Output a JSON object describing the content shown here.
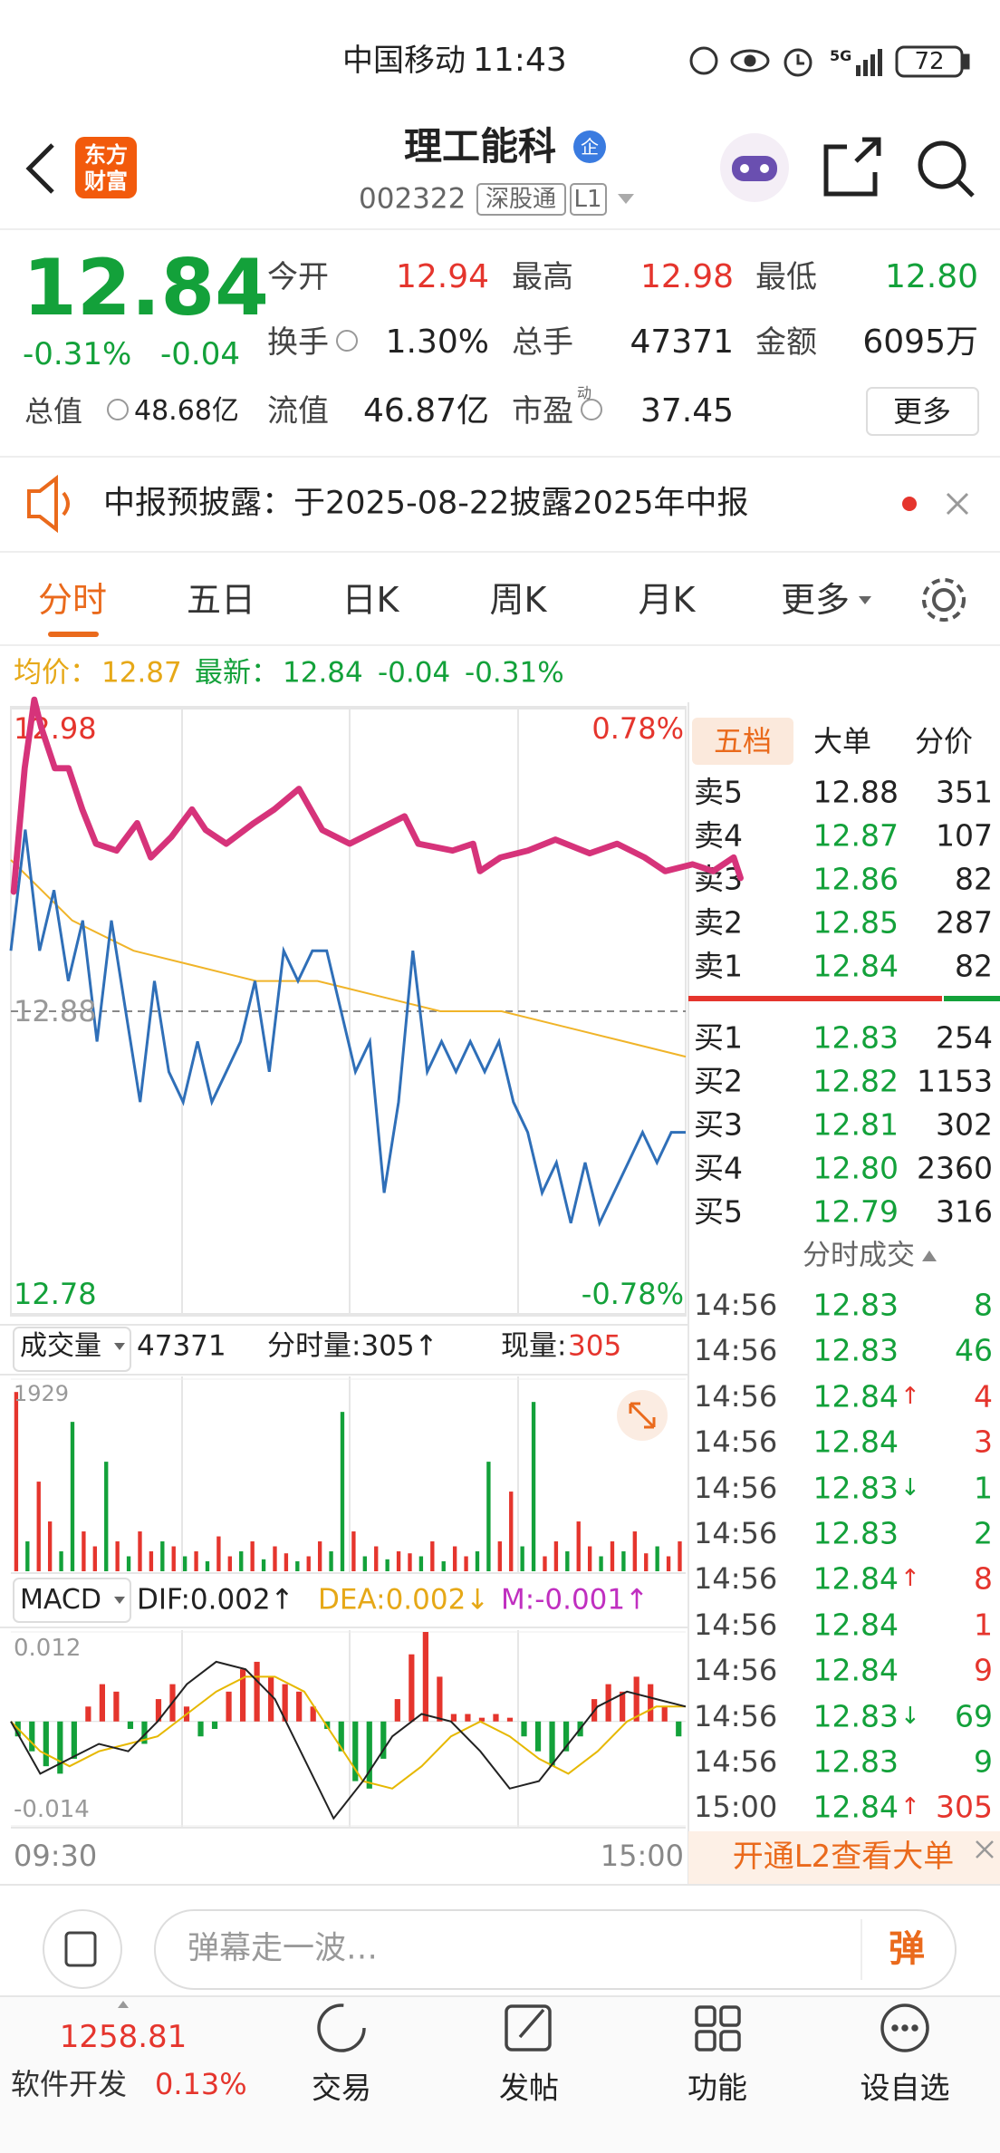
{
  "status_bar": {
    "carrier": "中国移动",
    "time": "11:43",
    "network": "5G",
    "battery": "72"
  },
  "palette": {
    "red": "#e5352d",
    "green": "#13a13a",
    "black": "#222222",
    "orange": "#ea6a1c",
    "gray": "#8a8a8a",
    "yellow": "#e6a817",
    "magenta": "#c02fc0"
  },
  "header": {
    "logo": [
      "东方",
      "财富"
    ],
    "title": "理工能科",
    "badge": "企",
    "code": "002322",
    "tags": [
      "深股通",
      "L1"
    ]
  },
  "quote": {
    "price": "12.84",
    "change_pct": "-0.31%",
    "change": "-0.04",
    "total_cap_label": "总值",
    "total_cap": "48.68亿",
    "fields": [
      {
        "label": "今开",
        "value": "12.94",
        "color": "red"
      },
      {
        "label": "最高",
        "value": "12.98",
        "color": "red"
      },
      {
        "label": "最低",
        "value": "12.80",
        "color": "green"
      },
      {
        "label": "换手",
        "value": "1.30%",
        "info": true
      },
      {
        "label": "总手",
        "value": "47371"
      },
      {
        "label": "金额",
        "value": "6095万"
      },
      {
        "label": "流值",
        "value": "46.87亿"
      },
      {
        "label": "市盈",
        "sup": "动",
        "value": "37.45",
        "info": true
      }
    ],
    "more": "更多"
  },
  "notice": {
    "text": "中报预披露：于2025-08-22披露2025年中报"
  },
  "tabs": {
    "items": [
      "分时",
      "五日",
      "日K",
      "周K",
      "月K",
      "更多"
    ],
    "active": 0
  },
  "intraday": {
    "avg_label": "均价：",
    "avg": "12.87",
    "last_label": "最新：",
    "last": "12.84",
    "change": "-0.04",
    "change_pct": "-0.31%",
    "ylim": [
      12.78,
      12.98
    ],
    "yticks": [
      12.78,
      12.88,
      12.98
    ],
    "pct_labels": {
      "top": "0.78%",
      "bottom": "-0.78%"
    },
    "price": {
      "color": "#2f6fb8",
      "values": [
        12.9,
        12.94,
        12.9,
        12.92,
        12.89,
        12.91,
        12.87,
        12.91,
        12.88,
        12.85,
        12.89,
        12.86,
        12.85,
        12.87,
        12.85,
        12.86,
        12.87,
        12.89,
        12.86,
        12.9,
        12.89,
        12.9,
        12.9,
        12.88,
        12.86,
        12.87,
        12.82,
        12.85,
        12.9,
        12.86,
        12.87,
        12.86,
        12.87,
        12.86,
        12.87,
        12.85,
        12.84,
        12.82,
        12.83,
        12.81,
        12.83,
        12.81,
        12.82,
        12.83,
        12.84,
        12.83,
        12.84,
        12.84
      ]
    },
    "avg_line": {
      "color": "#f0b429",
      "values": [
        12.93,
        12.91,
        12.9,
        12.895,
        12.89,
        12.89,
        12.885,
        12.88,
        12.88,
        12.875,
        12.87,
        12.865
      ]
    }
  },
  "order_book": {
    "tabs": [
      "五档",
      "大单",
      "分价"
    ],
    "asks": [
      {
        "label": "卖5",
        "price": "12.88",
        "volume": "351",
        "color": "black"
      },
      {
        "label": "卖4",
        "price": "12.87",
        "volume": "107",
        "color": "green"
      },
      {
        "label": "卖3",
        "price": "12.86",
        "volume": "82",
        "color": "green"
      },
      {
        "label": "卖2",
        "price": "12.85",
        "volume": "287",
        "color": "green"
      },
      {
        "label": "卖1",
        "price": "12.84",
        "volume": "82",
        "color": "green"
      }
    ],
    "bids": [
      {
        "label": "买1",
        "price": "12.83",
        "volume": "254",
        "color": "green"
      },
      {
        "label": "买2",
        "price": "12.82",
        "volume": "1153",
        "color": "green"
      },
      {
        "label": "买3",
        "price": "12.81",
        "volume": "302",
        "color": "green"
      },
      {
        "label": "买4",
        "price": "12.80",
        "volume": "2360",
        "color": "green"
      },
      {
        "label": "买5",
        "price": "12.79",
        "volume": "316",
        "color": "green"
      }
    ]
  },
  "trades": {
    "title": "分时成交",
    "rows": [
      {
        "time": "14:56",
        "price": "12.83",
        "volume": "8",
        "volume_color": "green"
      },
      {
        "time": "14:56",
        "price": "12.83",
        "volume": "46",
        "volume_color": "green"
      },
      {
        "time": "14:56",
        "price": "12.84",
        "arrow": "↑",
        "volume": "4",
        "volume_color": "red"
      },
      {
        "time": "14:56",
        "price": "12.84",
        "volume": "3",
        "volume_color": "red"
      },
      {
        "time": "14:56",
        "price": "12.83",
        "arrow": "↓",
        "volume": "1",
        "volume_color": "green"
      },
      {
        "time": "14:56",
        "price": "12.83",
        "volume": "2",
        "volume_color": "green"
      },
      {
        "time": "14:56",
        "price": "12.84",
        "arrow": "↑",
        "volume": "8",
        "volume_color": "red"
      },
      {
        "time": "14:56",
        "price": "12.84",
        "volume": "1",
        "volume_color": "red"
      },
      {
        "time": "14:56",
        "price": "12.84",
        "volume": "9",
        "volume_color": "red"
      },
      {
        "time": "14:56",
        "price": "12.83",
        "arrow": "↓",
        "volume": "69",
        "volume_color": "green"
      },
      {
        "time": "14:56",
        "price": "12.83",
        "volume": "9",
        "volume_color": "green"
      },
      {
        "time": "15:00",
        "price": "12.84",
        "arrow": "↑",
        "volume": "305",
        "volume_color": "red"
      }
    ],
    "l2_banner": "开通L2查看大单"
  },
  "volume": {
    "label": "成交量",
    "total": "47371",
    "tick_label": "分时量:305↑",
    "current_label": "现量:",
    "current": "305",
    "ylim": [
      0,
      1929
    ],
    "yticks": [
      1929
    ],
    "values": [
      1800,
      300,
      900,
      500,
      200,
      1500,
      400,
      250,
      1100,
      300,
      150,
      400,
      200,
      300,
      250,
      150,
      200,
      100,
      350,
      150,
      200,
      300,
      120,
      250,
      180,
      100,
      150,
      300,
      200,
      1600,
      400,
      150,
      250,
      120,
      200,
      180,
      150,
      300,
      100,
      250,
      150,
      200,
      1100,
      300,
      800,
      250,
      1700,
      150,
      300,
      200,
      500,
      250,
      150,
      300,
      200,
      400,
      180,
      250,
      150,
      300
    ],
    "colors": [
      "red",
      "green",
      "red",
      "red",
      "green",
      "green",
      "red",
      "red",
      "green",
      "red",
      "green",
      "red",
      "red",
      "green",
      "red",
      "green",
      "red",
      "green",
      "red",
      "red",
      "green",
      "red",
      "green",
      "red",
      "red",
      "green",
      "red",
      "red",
      "green",
      "green",
      "red",
      "green",
      "red",
      "green",
      "red",
      "red",
      "green",
      "red",
      "green",
      "red",
      "red",
      "green",
      "green",
      "red",
      "red",
      "green",
      "green",
      "red",
      "red",
      "green",
      "red",
      "red",
      "green",
      "red",
      "green",
      "red",
      "red",
      "green",
      "red",
      "red"
    ]
  },
  "macd": {
    "label": "MACD",
    "dif": "DIF:0.002↑",
    "dea": "DEA:0.002↓",
    "m": "M:-0.001↑",
    "ylim": [
      -0.014,
      0.012
    ],
    "yticks": [
      -0.014,
      0.012
    ],
    "bars": [
      -0.002,
      -0.004,
      -0.006,
      -0.007,
      -0.005,
      0.002,
      0.005,
      0.004,
      -0.001,
      -0.003,
      0.003,
      0.005,
      0.002,
      -0.002,
      -0.001,
      0.004,
      0.007,
      0.008,
      0.006,
      0.005,
      0.004,
      0.002,
      -0.001,
      -0.004,
      -0.008,
      -0.009,
      -0.005,
      0.003,
      0.009,
      0.012,
      0.006,
      0.001,
      0.001,
      0.0005,
      0.001,
      0.0005,
      -0.002,
      -0.004,
      -0.006,
      -0.004,
      -0.002,
      0.003,
      0.005,
      0.004,
      0.006,
      0.005,
      0.002,
      -0.002
    ],
    "dif_line": {
      "color": "#222222",
      "values": [
        0.0,
        -0.007,
        -0.005,
        -0.003,
        -0.004,
        0.0,
        0.005,
        0.008,
        0.007,
        0.003,
        -0.005,
        -0.013,
        -0.008,
        -0.002,
        0.001,
        0.0,
        -0.004,
        -0.009,
        -0.008,
        -0.003,
        0.002,
        0.004,
        0.003,
        0.002
      ]
    },
    "dea_line": {
      "color": "#e6b800",
      "values": [
        0.0,
        -0.004,
        -0.006,
        -0.004,
        -0.003,
        -0.002,
        0.001,
        0.004,
        0.006,
        0.006,
        0.004,
        -0.002,
        -0.008,
        -0.009,
        -0.006,
        -0.002,
        0.0,
        -0.002,
        -0.005,
        -0.007,
        -0.004,
        0.0,
        0.002,
        0.002
      ]
    }
  },
  "time_axis": [
    "09:30",
    "15:00"
  ],
  "comment": {
    "placeholder": "弹幕走一波…",
    "button": "弹"
  },
  "nav": {
    "index_value": "1258.81",
    "index_name": "软件开发",
    "index_change": "0.13%",
    "items": [
      "交易",
      "发帖",
      "功能",
      "设自选"
    ]
  }
}
